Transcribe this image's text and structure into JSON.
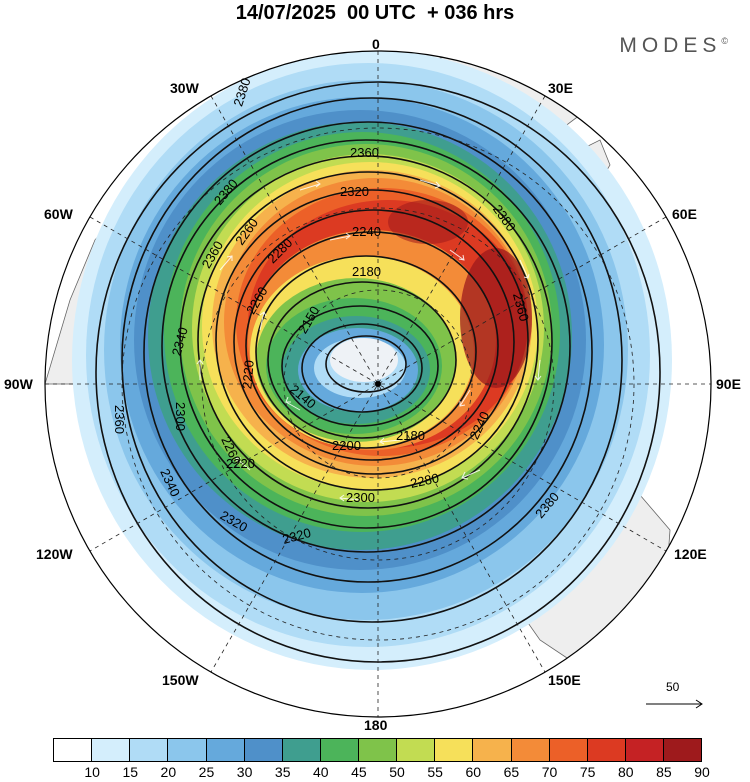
{
  "header": {
    "title": "14/07/2025  00 UTC  + 036 hrs",
    "brand": "MODES",
    "brand_mark": "©"
  },
  "map": {
    "projection": "polar stereographic (South Pole)",
    "longitude_labels": {
      "top": "0",
      "upper_right": "30E",
      "right_upper": "60E",
      "right": "90E",
      "right_lower": "120E",
      "lower_right": "150E",
      "bottom": "180",
      "lower_left": "150W",
      "left_lower": "120W",
      "left": "90W",
      "left_upper": "60W",
      "upper_left": "30W"
    },
    "contour_labels": [
      "2380",
      "2380",
      "2360",
      "2320",
      "2240",
      "2180",
      "2150",
      "2140",
      "2260",
      "2280",
      "2260",
      "2360",
      "2340",
      "2300",
      "2220",
      "2260",
      "2200",
      "2180",
      "2240",
      "2280",
      "2300",
      "2320",
      "2340",
      "2360",
      "2380",
      "2360",
      "2320",
      "2220",
      "2380"
    ],
    "fill_colors": [
      "#ffffff",
      "#d4eefc",
      "#b0dcf6",
      "#8bc6ec",
      "#65a9dc",
      "#4f90c9",
      "#3f9e8f",
      "#4cb45a",
      "#7fc34a",
      "#c2dc52",
      "#f6e05a",
      "#f6b24c",
      "#f38b38",
      "#ec6028",
      "#dc3a22",
      "#c52224",
      "#9e1a1c"
    ],
    "vector_reference": {
      "label": "50"
    }
  },
  "colorbar": {
    "colors": [
      "#ffffff",
      "#d4eefc",
      "#b0dcf6",
      "#8bc6ec",
      "#65a9dc",
      "#4f90c9",
      "#3f9e8f",
      "#4cb45a",
      "#7fc34a",
      "#c2dc52",
      "#f6e05a",
      "#f6b24c",
      "#f38b38",
      "#ec6028",
      "#dc3a22",
      "#c52224",
      "#9e1a1c"
    ],
    "ticks": [
      "10",
      "15",
      "20",
      "25",
      "30",
      "35",
      "40",
      "45",
      "50",
      "55",
      "60",
      "65",
      "70",
      "75",
      "80",
      "85",
      "90"
    ]
  }
}
